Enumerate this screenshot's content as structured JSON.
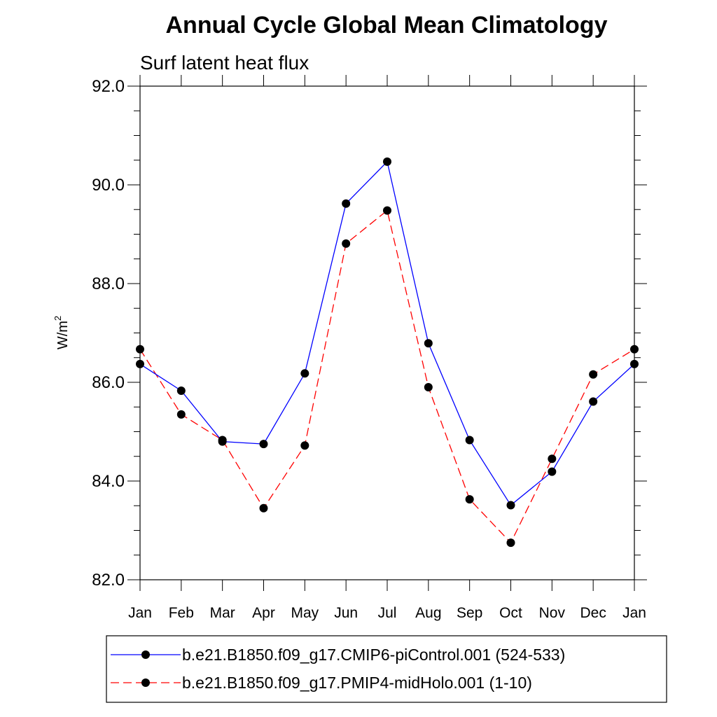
{
  "chart_data": {
    "type": "line",
    "title": "Annual Cycle Global Mean Climatology",
    "subtitle": "Surf latent heat flux",
    "xlabel": "",
    "ylabel_base": "W/m",
    "ylabel_sup": "2",
    "categories": [
      "Jan",
      "Feb",
      "Mar",
      "Apr",
      "May",
      "Jun",
      "Jul",
      "Aug",
      "Sep",
      "Oct",
      "Nov",
      "Dec",
      "Jan"
    ],
    "ylim": [
      82.0,
      92.0
    ],
    "yticks": [
      "82.0",
      "84.0",
      "86.0",
      "88.0",
      "90.0",
      "92.0"
    ],
    "grid": false,
    "legend_position": "bottom",
    "series": [
      {
        "name": "b.e21.B1850.f09_g17.CMIP6-piControl.001 (524-533)",
        "color": "#0000ff",
        "style": "solid",
        "marker": "circle",
        "values": [
          86.37,
          85.83,
          84.8,
          84.75,
          86.18,
          89.62,
          90.47,
          86.79,
          84.83,
          83.51,
          84.19,
          85.61,
          86.37
        ]
      },
      {
        "name": "b.e21.B1850.f09_g17.PMIP4-midHolo.001 (1-10)",
        "color": "#ff0000",
        "style": "dashed",
        "marker": "circle",
        "values": [
          86.67,
          85.35,
          84.83,
          83.45,
          84.72,
          88.81,
          89.48,
          85.9,
          83.63,
          82.75,
          84.45,
          86.16,
          86.67
        ]
      }
    ]
  }
}
